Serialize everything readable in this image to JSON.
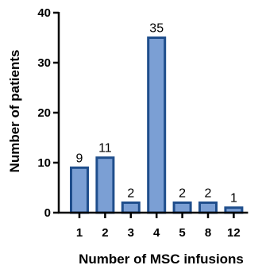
{
  "chart_data": {
    "type": "bar",
    "categories": [
      "1",
      "2",
      "3",
      "4",
      "5",
      "8",
      "12"
    ],
    "values": [
      9,
      11,
      2,
      35,
      2,
      2,
      1
    ],
    "data_labels": [
      "9",
      "11",
      "2",
      "35",
      "2",
      "2",
      "1"
    ],
    "xlabel": "Number of MSC infusions",
    "ylabel": "Number of patients",
    "ylim": [
      0,
      40
    ],
    "yticks": [
      "0",
      "10",
      "20",
      "30",
      "40"
    ],
    "grid": false,
    "bar_fill": "#7b9fd4",
    "bar_stroke": "#1f4e8c"
  }
}
